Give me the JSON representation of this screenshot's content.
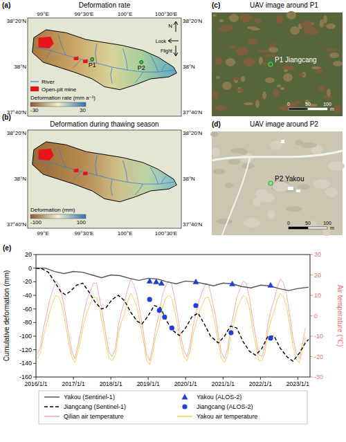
{
  "panel_letters": [
    "(a)",
    "(b)",
    "(c)",
    "(d)",
    "(e)"
  ],
  "maps": [
    {
      "title": "Deformation rate",
      "colorbar": {
        "label": "Deformation rate (mm a⁻¹)",
        "range": [
          -30,
          30
        ],
        "ticks": [
          -30,
          30
        ]
      }
    },
    {
      "title": "Deformation during thawing season",
      "colorbar": {
        "label": "Deformation (mm)",
        "range": [
          -100,
          100
        ],
        "ticks": [
          -100,
          100
        ]
      }
    }
  ],
  "lon_labels": [
    "99°E",
    "99°30'E",
    "100°E",
    "100°30'E"
  ],
  "lat_labels": [
    "38°20'N",
    "38°N",
    "37°40'N"
  ],
  "map_legend": [
    "River",
    "Open-pit mine"
  ],
  "compass": {
    "north": "N",
    "look": "Look",
    "flight": "Flight"
  },
  "points": [
    "P1",
    "P2"
  ],
  "images": [
    {
      "title": "UAV image around P1",
      "point": "P1 Jiangcang",
      "scale": [
        0,
        50,
        100
      ],
      "unit": "m"
    },
    {
      "title": "UAV image around P2",
      "point": "P2 Yakou",
      "scale": [
        0,
        50,
        100
      ],
      "unit": "m"
    }
  ],
  "chart_data": {
    "type": "line",
    "ylabel": "Cumulative deformation (mm)",
    "y2label": "Air temperature (℃)",
    "xlim": [
      "2016-01-01",
      "2023-04-30"
    ],
    "xticks": [
      {
        "value": "2016-01-01",
        "label": "2016/1/1"
      },
      {
        "value": "2017-01-01",
        "label": "2017/1/1"
      },
      {
        "value": "2018-01-01",
        "label": "2018/1/1"
      },
      {
        "value": "2019-01-01",
        "label": "2019/1/1"
      },
      {
        "value": "2020-01-01",
        "label": "2020/1/1"
      },
      {
        "value": "2021-01-01",
        "label": "2021/1/1"
      },
      {
        "value": "2022-01-01",
        "label": "2022/1/1"
      },
      {
        "value": "2023-01-01",
        "label": "2023/1/1"
      }
    ],
    "ylim": [
      -160,
      20
    ],
    "yticks": [
      -160,
      -140,
      -120,
      -100,
      -80,
      -60,
      -40,
      -20,
      0,
      20
    ],
    "y2lim": [
      -30,
      30
    ],
    "y2ticks": [
      -30,
      -20,
      -10,
      0,
      10,
      20,
      30
    ],
    "grid": false,
    "legend": "bottom",
    "series": [
      {
        "name": "Yakou (Sentinel-1)",
        "type": "line",
        "color": "#555555",
        "line_style": "solid",
        "x": [
          "2016-01-01",
          "2016-04-01",
          "2016-07-01",
          "2016-10-01",
          "2017-01-01",
          "2017-04-01",
          "2017-07-01",
          "2017-10-01",
          "2018-01-01",
          "2018-04-01",
          "2018-07-01",
          "2018-10-01",
          "2019-01-01",
          "2019-04-01",
          "2019-07-01",
          "2019-10-01",
          "2020-01-01",
          "2020-04-01",
          "2020-07-01",
          "2020-10-01",
          "2021-01-01",
          "2021-04-01",
          "2021-07-01",
          "2021-10-01",
          "2022-01-01",
          "2022-04-01",
          "2022-07-01",
          "2022-10-01",
          "2023-01-01",
          "2023-04-15"
        ],
        "values": [
          0,
          0,
          -5,
          -8,
          -5,
          -6,
          -10,
          -14,
          -10,
          -11,
          -15,
          -18,
          -15,
          -16,
          -20,
          -23,
          -19,
          -20,
          -23,
          -26,
          -22,
          -23,
          -27,
          -29,
          -25,
          -26,
          -30,
          -33,
          -30,
          -28
        ]
      },
      {
        "name": "Yakou (ALOS-2)",
        "type": "scatter",
        "color": "#1f3fd6",
        "marker": "triangle",
        "x": [
          "2019-01-15",
          "2019-03-20",
          "2019-05-10",
          "2020-04-10",
          "2021-04-01",
          "2022-04-10"
        ],
        "values": [
          -19,
          -20,
          -22,
          -20,
          -23,
          -25
        ]
      },
      {
        "name": "Jiangcang (Sentinel-1)",
        "type": "line",
        "color": "#000000",
        "line_style": "dashed",
        "x": [
          "2016-01-01",
          "2016-03-01",
          "2016-05-01",
          "2016-07-01",
          "2016-09-01",
          "2016-10-15",
          "2016-12-01",
          "2017-02-01",
          "2017-04-01",
          "2017-06-01",
          "2017-08-01",
          "2017-10-01",
          "2017-11-15",
          "2018-01-15",
          "2018-03-15",
          "2018-05-15",
          "2018-07-15",
          "2018-09-15",
          "2018-11-01",
          "2019-01-01",
          "2019-03-01",
          "2019-05-01",
          "2019-07-01",
          "2019-09-01",
          "2019-11-01",
          "2020-01-01",
          "2020-03-01",
          "2020-05-01",
          "2020-07-01",
          "2020-09-01",
          "2020-11-15",
          "2021-01-15",
          "2021-03-15",
          "2021-05-15",
          "2021-07-15",
          "2021-09-15",
          "2021-11-15",
          "2022-01-15",
          "2022-03-15",
          "2022-05-15",
          "2022-07-15",
          "2022-09-15",
          "2022-11-15",
          "2023-01-15",
          "2023-03-15",
          "2023-04-15"
        ],
        "values": [
          0,
          -1,
          -6,
          -20,
          -35,
          -39,
          -34,
          -25,
          -22,
          -35,
          -50,
          -60,
          -58,
          -46,
          -40,
          -48,
          -65,
          -78,
          -82,
          -70,
          -55,
          -58,
          -78,
          -92,
          -99,
          -88,
          -72,
          -66,
          -82,
          -100,
          -110,
          -100,
          -85,
          -88,
          -108,
          -122,
          -128,
          -118,
          -100,
          -100,
          -118,
          -130,
          -137,
          -125,
          -110,
          -105
        ]
      },
      {
        "name": "Jiangcang (ALOS-2)",
        "type": "scatter",
        "color": "#1f3fd6",
        "marker": "circle",
        "x": [
          "2019-01-15",
          "2019-04-20",
          "2019-06-10",
          "2019-08-20",
          "2020-04-10",
          "2021-03-20",
          "2022-04-10"
        ],
        "values": [
          -46,
          -62,
          -72,
          -88,
          -55,
          -95,
          -103
        ]
      },
      {
        "name": "Qilian air temperature",
        "type": "line",
        "color": "#f4a0a0",
        "line_style": "solid",
        "axis": "y2",
        "x": [
          "2016-01-15",
          "2016-02-15",
          "2016-03-15",
          "2016-04-15",
          "2016-05-15",
          "2016-06-15",
          "2016-07-15",
          "2016-08-15",
          "2016-09-15",
          "2016-10-15",
          "2016-11-15",
          "2016-12-15",
          "2017-01-15",
          "2017-02-15",
          "2017-03-15",
          "2017-04-15",
          "2017-05-15",
          "2017-06-15",
          "2017-07-15",
          "2017-08-15",
          "2017-09-15",
          "2017-10-15",
          "2017-11-15",
          "2017-12-15",
          "2018-01-15",
          "2018-02-15",
          "2018-03-15",
          "2018-04-15",
          "2018-05-15",
          "2018-06-15",
          "2018-07-15",
          "2018-08-15",
          "2018-09-15",
          "2018-10-15",
          "2018-11-15",
          "2018-12-15",
          "2019-01-15",
          "2019-02-15",
          "2019-03-15",
          "2019-04-15",
          "2019-05-15",
          "2019-06-15",
          "2019-07-15",
          "2019-08-15",
          "2019-09-15",
          "2019-10-15",
          "2019-11-15",
          "2019-12-15",
          "2020-01-15",
          "2020-02-15",
          "2020-03-15",
          "2020-04-15",
          "2020-05-15",
          "2020-06-15",
          "2020-07-15",
          "2020-08-15",
          "2020-09-15",
          "2020-10-15",
          "2020-11-15",
          "2020-12-15",
          "2021-01-15",
          "2021-02-15",
          "2021-03-15",
          "2021-04-15",
          "2021-05-15",
          "2021-06-15",
          "2021-07-15",
          "2021-08-15",
          "2021-09-15",
          "2021-10-15",
          "2021-11-15",
          "2021-12-15",
          "2022-01-15",
          "2022-02-15",
          "2022-03-15",
          "2022-04-15",
          "2022-05-15",
          "2022-06-15",
          "2022-07-15",
          "2022-08-15",
          "2022-09-15",
          "2022-10-15",
          "2022-11-15",
          "2022-12-15",
          "2023-01-15",
          "2023-02-15",
          "2023-03-15"
        ],
        "values": [
          -19,
          -15,
          -6,
          1,
          8,
          13,
          17,
          15,
          9,
          1,
          -9,
          -17,
          -21,
          -14,
          -7,
          2,
          8,
          12,
          16,
          16,
          8,
          0,
          -10,
          -18,
          -20,
          -16,
          -5,
          2,
          7,
          13,
          18,
          15,
          10,
          1,
          -8,
          -19,
          -22,
          -15,
          -6,
          0,
          9,
          14,
          17,
          16,
          9,
          0,
          -10,
          -17,
          -20,
          -14,
          -5,
          2,
          8,
          12,
          16,
          15,
          8,
          1,
          -9,
          -18,
          -21,
          -16,
          -6,
          1,
          9,
          13,
          17,
          16,
          9,
          -1,
          -10,
          -19,
          -20,
          -15,
          -4,
          3,
          8,
          14,
          18,
          16,
          10,
          0,
          -11,
          -18,
          -21,
          -14,
          -6
        ]
      },
      {
        "name": "Yakou air temperature",
        "type": "line",
        "color": "#f2c94c",
        "line_style": "solid",
        "axis": "y2",
        "x": [
          "2016-01-15",
          "2016-02-15",
          "2016-03-15",
          "2016-04-15",
          "2016-05-15",
          "2016-06-15",
          "2016-07-15",
          "2016-08-15",
          "2016-09-15",
          "2016-10-15",
          "2016-11-15",
          "2016-12-15",
          "2017-01-15",
          "2017-02-15",
          "2017-03-15",
          "2017-04-15",
          "2017-05-15",
          "2017-06-15",
          "2017-07-15",
          "2017-08-15",
          "2017-09-15",
          "2017-10-15",
          "2017-11-15",
          "2017-12-15",
          "2018-01-15",
          "2018-02-15",
          "2018-03-15",
          "2018-04-15",
          "2018-05-15",
          "2018-06-15",
          "2018-07-15",
          "2018-08-15",
          "2018-09-15",
          "2018-10-15",
          "2018-11-15",
          "2018-12-15",
          "2019-01-15",
          "2019-02-15",
          "2019-03-15",
          "2019-04-15",
          "2019-05-15",
          "2019-06-15",
          "2019-07-15",
          "2019-08-15",
          "2019-09-15",
          "2019-10-15",
          "2019-11-15",
          "2019-12-15",
          "2020-01-15",
          "2020-02-15",
          "2020-03-15",
          "2020-04-15",
          "2020-05-15",
          "2020-06-15",
          "2020-07-15",
          "2020-08-15",
          "2020-09-15",
          "2020-10-15",
          "2020-11-15",
          "2020-12-15",
          "2021-01-15",
          "2021-02-15",
          "2021-03-15",
          "2021-04-15",
          "2021-05-15",
          "2021-06-15",
          "2021-07-15",
          "2021-08-15",
          "2021-09-15",
          "2021-10-15",
          "2021-11-15",
          "2021-12-15",
          "2022-01-15",
          "2022-02-15",
          "2022-03-15",
          "2022-04-15",
          "2022-05-15",
          "2022-06-15",
          "2022-07-15",
          "2022-08-15",
          "2022-09-15",
          "2022-10-15",
          "2022-11-15",
          "2022-12-15",
          "2023-01-15",
          "2023-02-15",
          "2023-03-15"
        ],
        "values": [
          -21,
          -18,
          -10,
          -4,
          2,
          7,
          10,
          9,
          4,
          -4,
          -13,
          -20,
          -23,
          -17,
          -11,
          -3,
          2,
          6,
          9,
          9,
          3,
          -5,
          -14,
          -21,
          -22,
          -19,
          -9,
          -3,
          1,
          7,
          11,
          8,
          4,
          -4,
          -12,
          -22,
          -24,
          -18,
          -10,
          -5,
          3,
          8,
          10,
          9,
          3,
          -5,
          -14,
          -20,
          -22,
          -17,
          -9,
          -3,
          2,
          6,
          9,
          9,
          3,
          -4,
          -13,
          -21,
          -23,
          -19,
          -10,
          -4,
          3,
          7,
          10,
          9,
          4,
          -6,
          -14,
          -22,
          -22,
          -18,
          -8,
          -2,
          2,
          8,
          11,
          9,
          4,
          -5,
          -15,
          -21,
          -23,
          -17,
          -10
        ]
      }
    ]
  }
}
